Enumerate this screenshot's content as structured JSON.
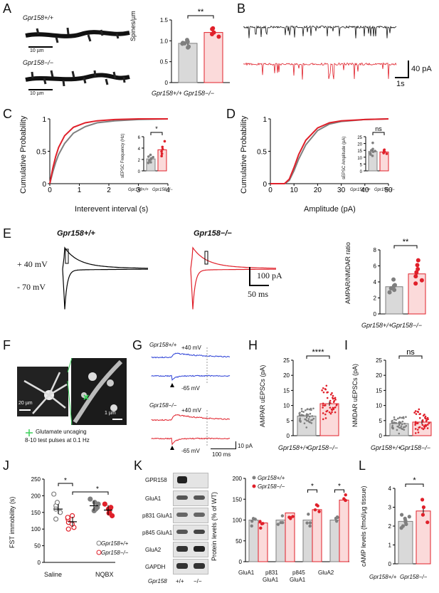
{
  "panels": {
    "A": "A",
    "B": "B",
    "C": "C",
    "D": "D",
    "E": "E",
    "F": "F",
    "G": "G",
    "H": "H",
    "I": "I",
    "J": "J",
    "K": "K",
    "L": "L"
  },
  "genotypes": {
    "wt": "Gpr158+/+",
    "ko": "Gpr158−/−",
    "wt_short": "+/+",
    "ko_short": "−/−",
    "gene": "Gpr158"
  },
  "colors": {
    "wt": "#7f7f7f",
    "ko": "#e0202a",
    "wt_fill": "#d9d9d9",
    "ko_fill": "#fbdada",
    "blue": "#2a3fd6"
  },
  "panelA": {
    "scale1": "10 µm",
    "scale2": "10 µm",
    "chart_data": {
      "type": "bar",
      "categories": [
        "Gpr158+/+",
        "Gpr158−/−"
      ],
      "values": [
        0.94,
        1.2
      ],
      "ylabel": "Spines/µm",
      "ylim": [
        0,
        1.5
      ],
      "yticks": [
        "0",
        "0.5",
        "1.0",
        "1.5"
      ],
      "sig": "**",
      "points": [
        [
          0.98,
          0.86,
          0.95,
          0.94,
          1.02,
          0.84,
          0.93
        ],
        [
          1.2,
          1.28,
          1.1,
          1.3,
          1.16
        ]
      ]
    }
  },
  "panelB": {
    "scale_y": "40 pA",
    "scale_x": "1s"
  },
  "panelC": {
    "chart_data": {
      "type": "line",
      "xlabel": "Interevent interval (s)",
      "ylabel": "Cumulative Probability",
      "xlim": [
        0,
        4
      ],
      "xticks": [
        "0",
        "1",
        "2",
        "3",
        "4"
      ],
      "ylim": [
        0,
        1
      ],
      "yticks": [
        "0",
        "0.5",
        "1"
      ],
      "series": [
        {
          "values_x": [
            0,
            0.1,
            0.2,
            0.3,
            0.5,
            0.8,
            1.2,
            1.6,
            2.2,
            3,
            4
          ],
          "values_y": [
            0,
            0.18,
            0.33,
            0.45,
            0.62,
            0.78,
            0.88,
            0.94,
            0.97,
            0.99,
            1
          ]
        },
        {
          "values_x": [
            0,
            0.1,
            0.2,
            0.3,
            0.5,
            0.8,
            1.2,
            1.6,
            2.2,
            3,
            4
          ],
          "values_y": [
            0,
            0.24,
            0.42,
            0.56,
            0.74,
            0.87,
            0.94,
            0.97,
            0.99,
            1,
            1
          ]
        }
      ]
    },
    "inset": {
      "ylabel": "sEPSC Frequency (Hz)",
      "yticks": [
        "0",
        "2",
        "4",
        "6"
      ],
      "ylim": [
        0,
        6
      ],
      "values": [
        2.1,
        3.7
      ],
      "sig": "*",
      "points": [
        [
          1.5,
          2.2,
          2.5,
          1.8,
          2.8,
          2,
          1.4,
          2.4
        ],
        [
          4.2,
          2.6,
          5.2,
          3,
          3.4,
          3.8
        ]
      ]
    }
  },
  "panelD": {
    "chart_data": {
      "type": "line",
      "xlabel": "Amplitude (pA)",
      "ylabel": "Cumulative Probability",
      "xlim": [
        0,
        50
      ],
      "xticks": [
        "0",
        "10",
        "20",
        "30",
        "40",
        "50"
      ],
      "ylim": [
        0,
        1
      ],
      "yticks": [
        "0",
        "0.5",
        "1"
      ],
      "series": [
        {
          "values_x": [
            0,
            6,
            8,
            10,
            12,
            15,
            20,
            25,
            30,
            40,
            50
          ],
          "values_y": [
            0,
            0,
            0.05,
            0.2,
            0.38,
            0.6,
            0.82,
            0.92,
            0.96,
            0.99,
            1
          ]
        },
        {
          "values_x": [
            0,
            6,
            8,
            10,
            12,
            15,
            20,
            25,
            30,
            40,
            50
          ],
          "values_y": [
            0,
            0,
            0.07,
            0.25,
            0.45,
            0.67,
            0.86,
            0.94,
            0.97,
            0.99,
            1
          ]
        }
      ]
    },
    "inset": {
      "ylabel": "sEPSC Amplitude (pA)",
      "yticks": [
        "0",
        "5",
        "10",
        "15",
        "20",
        "25"
      ],
      "ylim": [
        0,
        25
      ],
      "values": [
        14.2,
        13.8
      ],
      "sig": "ns",
      "points": [
        [
          20.5,
          14,
          12,
          15,
          11,
          16,
          13,
          14.5
        ],
        [
          15.5,
          13,
          12.5,
          15,
          13.5,
          14
        ]
      ]
    }
  },
  "panelE": {
    "v_pos": "+ 40 mV",
    "v_neg": "- 70 mV",
    "scale_y": "100 pA",
    "scale_x": "50 ms",
    "chart_data": {
      "type": "bar",
      "categories": [
        "Gpr158+/+",
        "Gpr158−/−"
      ],
      "values": [
        3.4,
        5.0
      ],
      "ylabel": "AMPAR/NMDAR ratio",
      "ylim": [
        0,
        8
      ],
      "yticks": [
        "0",
        "2",
        "4",
        "6",
        "8"
      ],
      "sig": "**",
      "points": [
        [
          3.5,
          3.6,
          2.7,
          3.2,
          4.3,
          3.0
        ],
        [
          6.1,
          4.7,
          4.2,
          5.2,
          3.8,
          5.6,
          6.7
        ]
      ]
    }
  },
  "panelF": {
    "scale_left": "20 µm",
    "scale_right": "1 µm",
    "legend_line1": "Glutamate uncaging",
    "legend_line2": "8-10 test pulses at 0.1 Hz"
  },
  "panelG": {
    "wt_pos": "+40 mV",
    "wt_neg": "-65 mV",
    "ko_pos": "+40 mV",
    "ko_neg": "-65 mV",
    "scale_y": "10 pA",
    "scale_x": "100 ms"
  },
  "panelH": {
    "chart_data": {
      "type": "bar",
      "categories": [
        "Gpr158+/+",
        "Gpr158−/−"
      ],
      "values": [
        6.5,
        10.6
      ],
      "ylabel": "AMPAR uEPSCs (pA)",
      "ylim": [
        0,
        25
      ],
      "yticks": [
        "0",
        "5",
        "10",
        "15",
        "20",
        "25"
      ],
      "sig": "****"
    }
  },
  "panelI": {
    "chart_data": {
      "type": "bar",
      "categories": [
        "Gpr158+/+",
        "Gpr158−/−"
      ],
      "values": [
        4.0,
        4.5
      ],
      "ylabel": "NMDAR uEPSCs (pA)",
      "ylim": [
        0,
        25
      ],
      "yticks": [
        "0",
        "5",
        "10",
        "15",
        "20",
        "25"
      ],
      "sig": "ns"
    }
  },
  "panelJ": {
    "chart_data": {
      "type": "scatter",
      "categories": [
        "Saline",
        "NQBX"
      ],
      "ylabel": "FST immobility (s)",
      "ylim": [
        0,
        250
      ],
      "yticks": [
        "0",
        "50",
        "100",
        "150",
        "200",
        "250"
      ],
      "sig": "*",
      "series": [
        {
          "group": "Saline",
          "mean": 160,
          "points": [
            205,
            170,
            160,
            130,
            150,
            180
          ]
        },
        {
          "group": "Saline",
          "mean": 122,
          "points": [
            100,
            120,
            130,
            140,
            105,
            115,
            135
          ]
        },
        {
          "group": "NQBX",
          "mean": 170,
          "points": [
            190,
            175,
            165,
            160,
            180,
            155
          ]
        },
        {
          "group": "NQBX",
          "mean": 157,
          "points": [
            175,
            165,
            150,
            140,
            160,
            148
          ]
        }
      ]
    },
    "legend_wt": "Gpr158+/+",
    "legend_ko": "Gpr158−/−"
  },
  "panelK": {
    "blot_labels": [
      "GPR158",
      "GluA1",
      "p831 GluA1",
      "p845 GluA1",
      "GluA2",
      "GAPDH"
    ],
    "lane_gene": "Gpr158",
    "lane_wt": "+/+",
    "lane_ko": "−/−",
    "chart_data": {
      "type": "bar",
      "categories": [
        "GluA1",
        "p831 GluA1",
        "p845 GluA1",
        "GluA2"
      ],
      "ylabel": "Protein levels (% of WT)",
      "ylim": [
        0,
        200
      ],
      "yticks": [
        "0",
        "50",
        "100",
        "150",
        "200"
      ],
      "series": [
        {
          "name": "Gpr158+/+",
          "values": [
            100,
            100,
            100,
            100
          ]
        },
        {
          "name": "Gpr158−/−",
          "values": [
            93,
            117,
            125,
            148
          ]
        }
      ],
      "sig": [
        "",
        "",
        "*",
        "*"
      ],
      "cat_line1": [
        "GluA1",
        "p831",
        "p845",
        "GluA2"
      ],
      "cat_line2": [
        "",
        "GluA1",
        "GluA1",
        ""
      ]
    }
  },
  "panelL": {
    "chart_data": {
      "type": "bar",
      "categories": [
        "Gpr158+/+",
        "Gpr158−/−"
      ],
      "values": [
        2.25,
        2.8
      ],
      "ylabel": "cAMP levels (fmol/µg tissue)",
      "ylim": [
        0,
        4
      ],
      "yticks": [
        "0",
        "1",
        "2",
        "3",
        "4"
      ],
      "sig": "*",
      "points": [
        [
          2.3,
          2.1,
          2.6,
          2.0,
          2.4,
          2.2,
          1.9,
          2.5
        ],
        [
          3.0,
          3.4,
          2.2,
          2.6
        ]
      ]
    }
  }
}
